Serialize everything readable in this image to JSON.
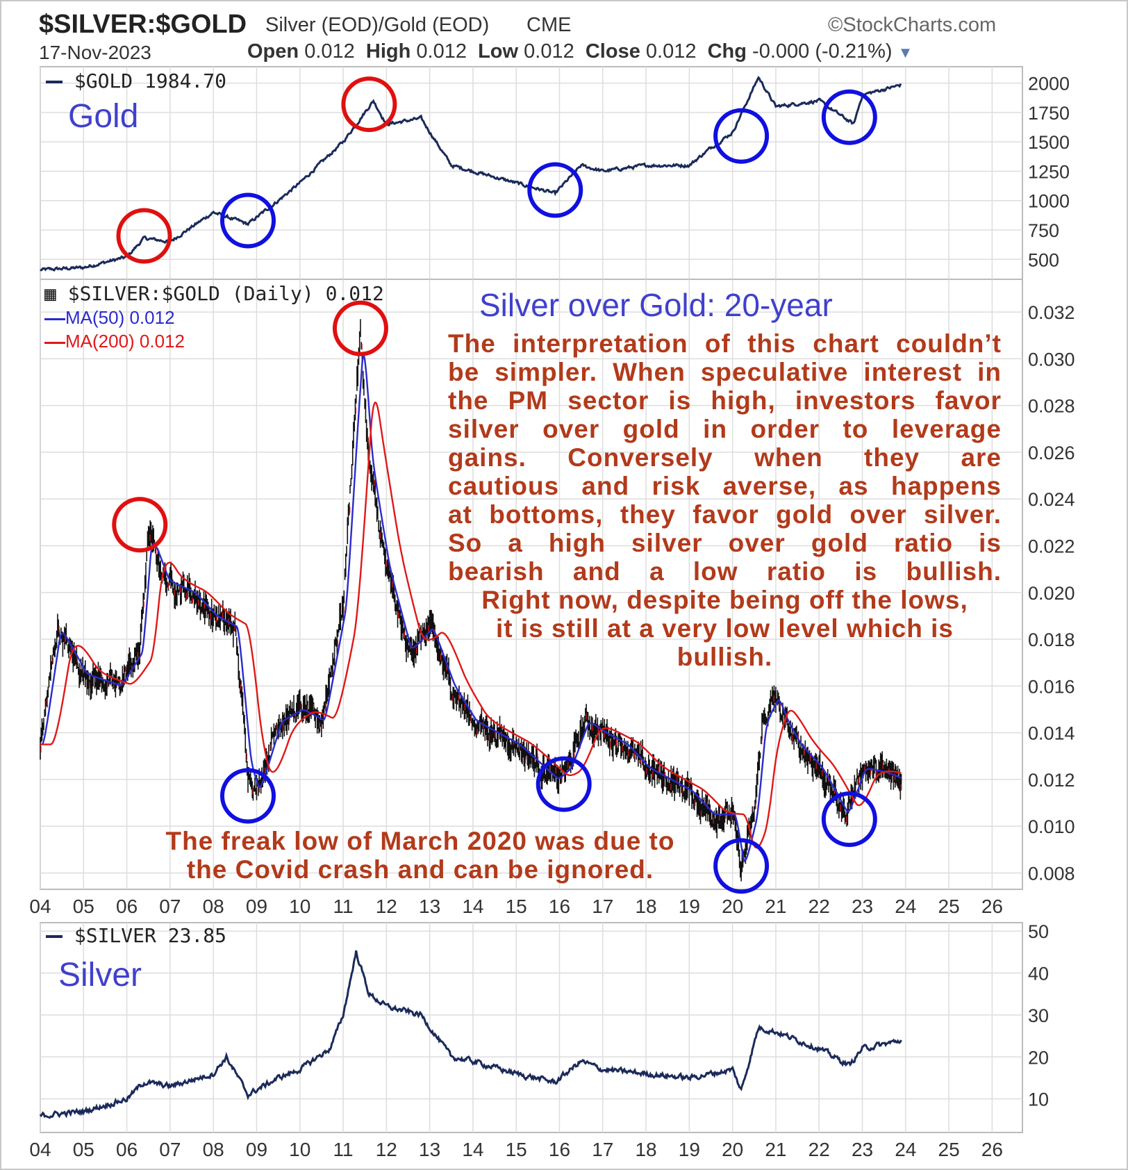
{
  "header": {
    "symbol": "$SILVER:$GOLD",
    "description": "Silver (EOD)/Gold (EOD)",
    "exchange": "CME",
    "source": "©StockCharts.com",
    "date": "17-Nov-2023",
    "open_label": "Open",
    "open_value": "0.012",
    "high_label": "High",
    "high_value": "0.012",
    "low_label": "Low",
    "low_value": "0.012",
    "close_label": "Close",
    "close_value": "0.012",
    "chg_label": "Chg",
    "chg_value": "-0.000 (-0.21%)"
  },
  "panels": {
    "gold": {
      "legend": "$GOLD 1984.70",
      "title": "Gold"
    },
    "ratio": {
      "legend": "$SILVER:$GOLD (Daily) 0.012",
      "ma50": "MA(50) 0.012",
      "ma200": "MA(200) 0.012",
      "title": "Silver over Gold: 20-year",
      "commentary": [
        "The interpretation of this chart couldn’t",
        "be simpler. When speculative interest in",
        "the PM sector is high, investors favor",
        "silver over gold in order to leverage",
        "gains. Conversely when they are",
        "cautious and risk averse, as happens",
        "at bottoms, they favor gold over silver.",
        "So a high silver over gold ratio is",
        "bearish and a low ratio is bullish.",
        "Right now, despite being off the lows,",
        "it is still at a very low level which is",
        "bullish."
      ],
      "footnote": [
        "The freak low of March 2020 was due to",
        "the Covid crash and can be ignored."
      ]
    },
    "silver": {
      "legend": "$SILVER 23.85",
      "title": "Silver"
    }
  },
  "colors": {
    "price_line": "#1a2a5a",
    "ma50": "#2a2ad0",
    "ma200": "#e01818",
    "bull_circle": "#1010e0",
    "bear_circle": "#e01010",
    "commentary": "#b23a1a",
    "panel_title": "#4040cc",
    "grid": "#dddddd"
  },
  "chart_data": [
    {
      "type": "line",
      "name": "gold-panel",
      "series": [
        {
          "name": "$GOLD",
          "x": [
            2004,
            2005,
            2006,
            2006.4,
            2007,
            2008,
            2008.8,
            2009.5,
            2010,
            2011,
            2011.7,
            2012,
            2012.8,
            2013.5,
            2014,
            2015,
            2015.9,
            2016.5,
            2017,
            2018,
            2019,
            2019.5,
            2020,
            2020.6,
            2021,
            2022,
            2022.8,
            2023,
            2023.9
          ],
          "values": [
            410,
            430,
            520,
            680,
            650,
            900,
            800,
            1000,
            1150,
            1500,
            1850,
            1650,
            1700,
            1300,
            1250,
            1150,
            1060,
            1300,
            1250,
            1300,
            1300,
            1450,
            1580,
            2050,
            1800,
            1850,
            1650,
            1900,
            1985
          ]
        }
      ],
      "xlim": [
        2004,
        2026.7
      ],
      "ylim": [
        330,
        2140
      ],
      "yticks": [
        500,
        750,
        1000,
        1250,
        1500,
        1750,
        2000
      ]
    },
    {
      "type": "line",
      "name": "ratio-panel",
      "series": [
        {
          "name": "$SILVER:$GOLD",
          "x": [
            2004,
            2004.4,
            2005,
            2005.8,
            2006.3,
            2006.5,
            2006.9,
            2007.5,
            2008,
            2008.5,
            2008.8,
            2009,
            2009.5,
            2010,
            2010.5,
            2011,
            2011.3,
            2011.4,
            2011.6,
            2012,
            2012.5,
            2013,
            2013.5,
            2014,
            2015,
            2015.9,
            2016.2,
            2016.6,
            2017,
            2017.5,
            2018,
            2019,
            2019.5,
            2020,
            2020.2,
            2020.5,
            2020.7,
            2021,
            2021.2,
            2021.5,
            2022,
            2022.6,
            2022.8,
            2023,
            2023.5,
            2023.9
          ],
          "values": [
            0.0135,
            0.0185,
            0.0165,
            0.016,
            0.0175,
            0.0225,
            0.0205,
            0.02,
            0.019,
            0.0185,
            0.0125,
            0.0115,
            0.0145,
            0.015,
            0.0145,
            0.0195,
            0.0285,
            0.031,
            0.0255,
            0.021,
            0.0175,
            0.0185,
            0.016,
            0.0145,
            0.0135,
            0.012,
            0.0125,
            0.0145,
            0.014,
            0.0135,
            0.0125,
            0.0115,
            0.0105,
            0.0105,
            0.0082,
            0.0105,
            0.0145,
            0.0155,
            0.0145,
            0.0135,
            0.0125,
            0.0105,
            0.0115,
            0.0125,
            0.0123,
            0.012
          ]
        },
        {
          "name": "MA(50)",
          "values": "smoothed"
        },
        {
          "name": "MA(200)",
          "values": "smoothed"
        }
      ],
      "xlim": [
        2004,
        2026.7
      ],
      "ylim": [
        0.0073,
        0.0334
      ],
      "yticks": [
        0.008,
        0.01,
        0.012,
        0.014,
        0.016,
        0.018,
        0.02,
        0.022,
        0.024,
        0.026,
        0.028,
        0.03,
        0.032
      ],
      "xticks": [
        "04",
        "05",
        "06",
        "07",
        "08",
        "09",
        "10",
        "11",
        "12",
        "13",
        "14",
        "15",
        "16",
        "17",
        "18",
        "19",
        "20",
        "21",
        "22",
        "23",
        "24",
        "25",
        "26"
      ]
    },
    {
      "type": "line",
      "name": "silver-panel",
      "series": [
        {
          "name": "$SILVER",
          "x": [
            2004,
            2005,
            2006,
            2006.4,
            2007,
            2008,
            2008.3,
            2008.8,
            2009.5,
            2010,
            2010.7,
            2011,
            2011.3,
            2011.6,
            2012,
            2012.8,
            2013.5,
            2014,
            2015,
            2015.9,
            2016.5,
            2017,
            2018,
            2019,
            2019.5,
            2020,
            2020.2,
            2020.6,
            2021,
            2021.5,
            2022,
            2022.7,
            2023,
            2023.5,
            2023.9
          ],
          "values": [
            6,
            7,
            10,
            14,
            13,
            16,
            20,
            11,
            15,
            17,
            22,
            30,
            45,
            35,
            32,
            30,
            20,
            19,
            16,
            14,
            19,
            17,
            16,
            15,
            16,
            17,
            12,
            27,
            26,
            24,
            22,
            18,
            22,
            23,
            24
          ]
        }
      ],
      "xlim": [
        2004,
        2026.7
      ],
      "ylim": [
        2,
        52
      ],
      "yticks": [
        10,
        20,
        30,
        40,
        50
      ],
      "xticks": [
        "04",
        "05",
        "06",
        "07",
        "08",
        "09",
        "10",
        "11",
        "12",
        "13",
        "14",
        "15",
        "16",
        "17",
        "18",
        "19",
        "20",
        "21",
        "22",
        "23",
        "24",
        "25",
        "26"
      ]
    }
  ],
  "markers": [
    {
      "panel": "gold",
      "color": "bear",
      "x": 2006.4,
      "y": 700
    },
    {
      "panel": "gold",
      "color": "bull",
      "x": 2008.8,
      "y": 830
    },
    {
      "panel": "gold",
      "color": "bear",
      "x": 2011.6,
      "y": 1820
    },
    {
      "panel": "gold",
      "color": "bull",
      "x": 2015.9,
      "y": 1090
    },
    {
      "panel": "gold",
      "color": "bull",
      "x": 2020.2,
      "y": 1550
    },
    {
      "panel": "gold",
      "color": "bull",
      "x": 2022.7,
      "y": 1710
    },
    {
      "panel": "ratio",
      "color": "bear",
      "x": 2011.4,
      "y": 0.0313
    },
    {
      "panel": "ratio",
      "color": "bear",
      "x": 2006.3,
      "y": 0.0229
    },
    {
      "panel": "ratio",
      "color": "bull",
      "x": 2008.8,
      "y": 0.0113
    },
    {
      "panel": "ratio",
      "color": "bull",
      "x": 2016.1,
      "y": 0.0118
    },
    {
      "panel": "ratio",
      "color": "bull",
      "x": 2020.2,
      "y": 0.0083
    },
    {
      "panel": "ratio",
      "color": "bull",
      "x": 2022.7,
      "y": 0.0103
    }
  ]
}
